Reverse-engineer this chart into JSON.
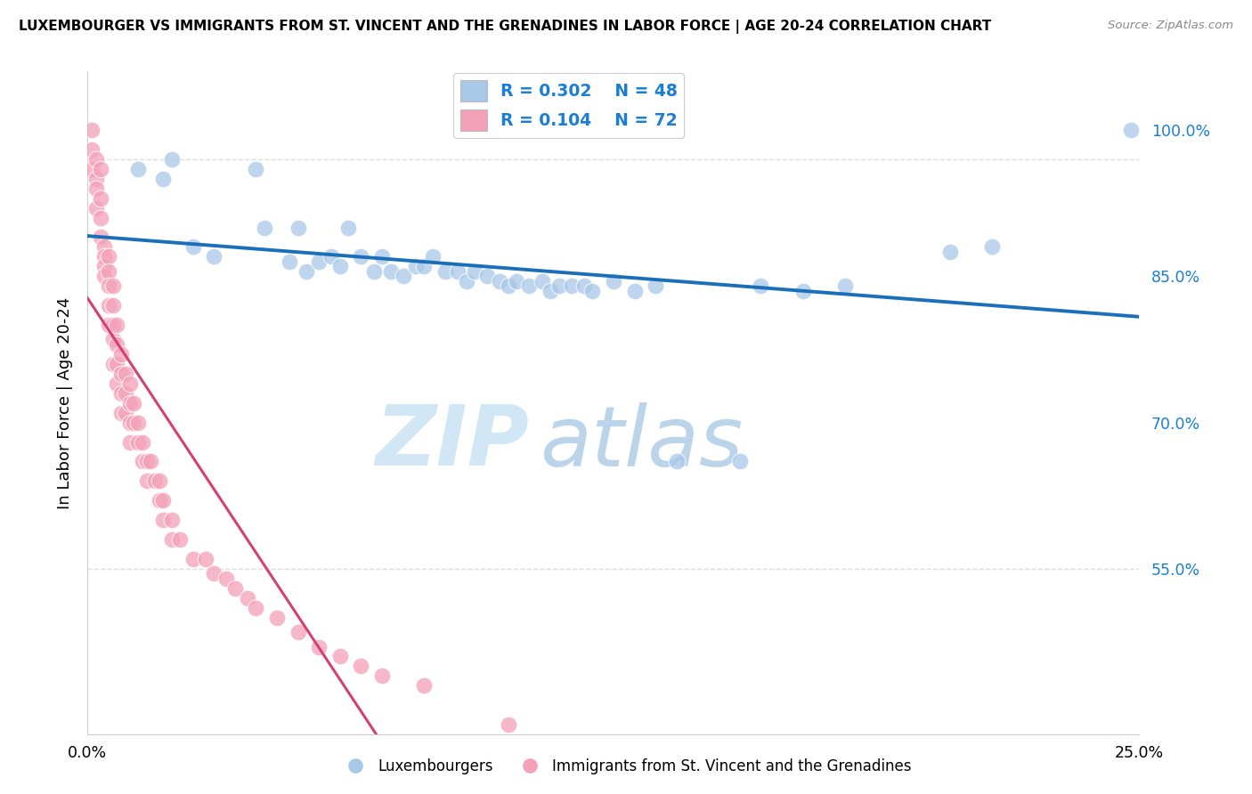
{
  "title": "LUXEMBOURGER VS IMMIGRANTS FROM ST. VINCENT AND THE GRENADINES IN LABOR FORCE | AGE 20-24 CORRELATION CHART",
  "source": "Source: ZipAtlas.com",
  "ylabel": "In Labor Force | Age 20-24",
  "ytick_labels": [
    "55.0%",
    "70.0%",
    "85.0%",
    "100.0%"
  ],
  "ytick_values": [
    0.55,
    0.7,
    0.85,
    1.0
  ],
  "xlim": [
    0.0,
    0.25
  ],
  "ylim": [
    0.38,
    1.06
  ],
  "legend_blue_R": "R = 0.302",
  "legend_blue_N": "N = 48",
  "legend_pink_R": "R = 0.104",
  "legend_pink_N": "N = 72",
  "legend_label_blue": "Luxembourgers",
  "legend_label_pink": "Immigrants from St. Vincent and the Grenadines",
  "blue_color": "#a8c8e8",
  "pink_color": "#f4a0b8",
  "blue_line_color": "#1a6fba",
  "pink_line_color": "#d44070",
  "dashed_line_color": "#dddddd",
  "blue_scatter_x": [
    0.012,
    0.018,
    0.02,
    0.025,
    0.03,
    0.04,
    0.042,
    0.048,
    0.05,
    0.052,
    0.055,
    0.058,
    0.06,
    0.062,
    0.065,
    0.068,
    0.07,
    0.072,
    0.075,
    0.078,
    0.08,
    0.082,
    0.085,
    0.088,
    0.09,
    0.092,
    0.095,
    0.098,
    0.1,
    0.102,
    0.105,
    0.108,
    0.11,
    0.112,
    0.115,
    0.118,
    0.12,
    0.125,
    0.13,
    0.135,
    0.14,
    0.155,
    0.16,
    0.17,
    0.18,
    0.205,
    0.215,
    0.248
  ],
  "blue_scatter_y": [
    0.96,
    0.95,
    0.97,
    0.88,
    0.87,
    0.96,
    0.9,
    0.865,
    0.9,
    0.855,
    0.865,
    0.87,
    0.86,
    0.9,
    0.87,
    0.855,
    0.87,
    0.855,
    0.85,
    0.86,
    0.86,
    0.87,
    0.855,
    0.855,
    0.845,
    0.855,
    0.85,
    0.845,
    0.84,
    0.845,
    0.84,
    0.845,
    0.835,
    0.84,
    0.84,
    0.84,
    0.835,
    0.845,
    0.835,
    0.84,
    0.66,
    0.66,
    0.84,
    0.835,
    0.84,
    0.875,
    0.88,
    1.0
  ],
  "pink_scatter_x": [
    0.001,
    0.001,
    0.001,
    0.002,
    0.002,
    0.002,
    0.002,
    0.003,
    0.003,
    0.003,
    0.003,
    0.004,
    0.004,
    0.004,
    0.004,
    0.005,
    0.005,
    0.005,
    0.005,
    0.005,
    0.006,
    0.006,
    0.006,
    0.006,
    0.006,
    0.007,
    0.007,
    0.007,
    0.007,
    0.008,
    0.008,
    0.008,
    0.008,
    0.009,
    0.009,
    0.009,
    0.01,
    0.01,
    0.01,
    0.01,
    0.011,
    0.011,
    0.012,
    0.012,
    0.013,
    0.013,
    0.014,
    0.014,
    0.015,
    0.016,
    0.017,
    0.017,
    0.018,
    0.018,
    0.02,
    0.02,
    0.022,
    0.025,
    0.028,
    0.03,
    0.033,
    0.035,
    0.038,
    0.04,
    0.045,
    0.05,
    0.055,
    0.06,
    0.065,
    0.07,
    0.08,
    0.1
  ],
  "pink_scatter_y": [
    1.0,
    0.98,
    0.96,
    0.97,
    0.95,
    0.94,
    0.92,
    0.96,
    0.93,
    0.91,
    0.89,
    0.88,
    0.87,
    0.86,
    0.85,
    0.87,
    0.855,
    0.84,
    0.82,
    0.8,
    0.84,
    0.82,
    0.8,
    0.785,
    0.76,
    0.8,
    0.78,
    0.76,
    0.74,
    0.77,
    0.75,
    0.73,
    0.71,
    0.75,
    0.73,
    0.71,
    0.74,
    0.72,
    0.7,
    0.68,
    0.72,
    0.7,
    0.7,
    0.68,
    0.68,
    0.66,
    0.66,
    0.64,
    0.66,
    0.64,
    0.64,
    0.62,
    0.62,
    0.6,
    0.6,
    0.58,
    0.58,
    0.56,
    0.56,
    0.545,
    0.54,
    0.53,
    0.52,
    0.51,
    0.5,
    0.485,
    0.47,
    0.46,
    0.45,
    0.44,
    0.43,
    0.39
  ]
}
